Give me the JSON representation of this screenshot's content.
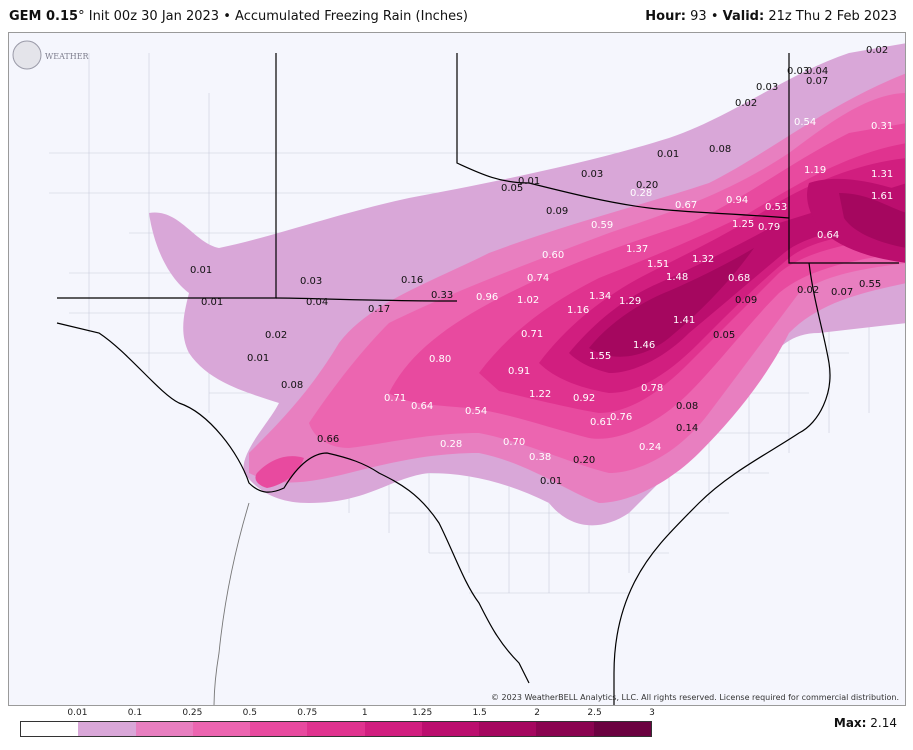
{
  "header": {
    "model": "GEM 0.15",
    "degree": "°",
    "init": "Init 00z 30 Jan 2023",
    "bullet": "•",
    "product": "Accumulated Freezing Rain (Inches)",
    "hour_label": "Hour:",
    "hour_value": "93",
    "valid_label": "Valid:",
    "valid_value": "21z Thu 2 Feb 2023"
  },
  "colors": {
    "map_background": "#f5f6fd",
    "border_line": "#000000",
    "county_line": "#c9ccdc"
  },
  "colorbar": {
    "labels": [
      "0.01",
      "0.1",
      "0.25",
      "0.5",
      "0.75",
      "1",
      "1.25",
      "1.5",
      "2",
      "2.5",
      "3"
    ],
    "colors": [
      "#ffffff",
      "#d9a7d8",
      "#e87fc0",
      "#ec65b0",
      "#e84a9f",
      "#e0338f",
      "#d11e7f",
      "#bb0e6e",
      "#a5075f",
      "#8a0450",
      "#6b0240"
    ]
  },
  "max": {
    "label": "Max:",
    "value": "2.14"
  },
  "copyright": "© 2023 WeatherBELL Analytics, LLC. All rights reserved. License required for commercial distribution.",
  "logo_text": "WEATHERBELL",
  "map_values": [
    "0.02",
    "0.03",
    "0.04",
    "0.03",
    "0.07",
    "0.02",
    "0.54",
    "0.31",
    "0.01",
    "0.08",
    "1.19",
    "1.31",
    "0.01",
    "0.03",
    "0.05",
    "0.20",
    "0.28",
    "0.67",
    "0.94",
    "0.53",
    "1.61",
    "0.09",
    "0.59",
    "1.25",
    "0.79",
    "0.64",
    "1.37",
    "0.60",
    "1.51",
    "1.32",
    "0.01",
    "0.74",
    "1.48",
    "0.68",
    "0.03",
    "0.16",
    "0.02",
    "0.07",
    "0.55",
    "0.01",
    "0.04",
    "0.33",
    "0.96",
    "1.02",
    "1.34",
    "1.29",
    "0.09",
    "0.17",
    "1.16",
    "1.41",
    "0.02",
    "0.71",
    "1.46",
    "0.05",
    "0.01",
    "0.80",
    "1.55",
    "0.91",
    "0.08",
    "0.71",
    "1.22",
    "0.92",
    "0.78",
    "0.64",
    "0.54",
    "0.61",
    "0.76",
    "0.08",
    "0.14",
    "0.66",
    "0.28",
    "0.70",
    "0.24",
    "0.38",
    "0.20",
    "0.01"
  ]
}
